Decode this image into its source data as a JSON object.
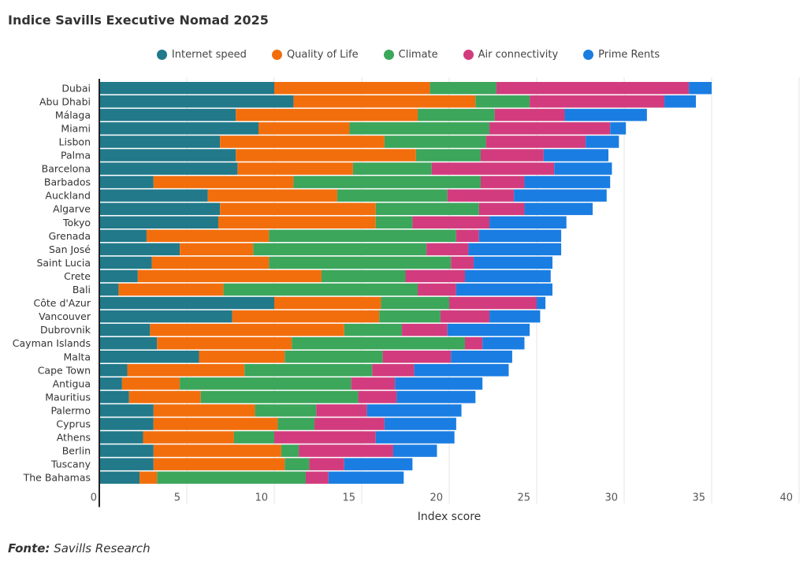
{
  "chart_data": {
    "type": "bar",
    "orientation": "horizontal",
    "stacked": true,
    "title": "Indice Savills Executive Nomad 2025",
    "xlabel": "Index score",
    "ylabel": "",
    "xlim": [
      0,
      40
    ],
    "xticks": [
      0,
      5,
      10,
      15,
      20,
      25,
      30,
      35,
      40
    ],
    "grid": true,
    "legend_position": "top",
    "categories": [
      "Dubai",
      "Abu Dhabi",
      "Málaga",
      "Miami",
      "Lisbon",
      "Palma",
      "Barcelona",
      "Barbados",
      "Auckland",
      "Algarve",
      "Tokyo",
      "Grenada",
      "San José",
      "Saint Lucia",
      "Crete",
      "Bali",
      "Côte d'Azur",
      "Vancouver",
      "Dubrovnik",
      "Cayman Islands",
      "Malta",
      "Cape Town",
      "Antigua",
      "Mauritius",
      "Palermo",
      "Cyprus",
      "Athens",
      "Berlin",
      "Tuscany",
      "The Bahamas"
    ],
    "series": [
      {
        "name": "Internet speed",
        "color": "#21798a",
        "values": [
          10.0,
          11.1,
          7.8,
          9.1,
          6.9,
          7.8,
          7.9,
          3.1,
          6.2,
          6.9,
          6.8,
          2.7,
          4.6,
          3.0,
          2.2,
          1.1,
          10.0,
          7.6,
          2.9,
          3.3,
          5.7,
          1.6,
          1.3,
          1.7,
          3.1,
          3.1,
          2.5,
          3.1,
          3.1,
          2.3
        ]
      },
      {
        "name": "Quality of Life",
        "color": "#f26e0c",
        "values": [
          8.9,
          10.4,
          10.4,
          5.2,
          9.4,
          10.3,
          6.6,
          8.0,
          7.4,
          8.9,
          9.0,
          7.0,
          4.2,
          6.7,
          10.5,
          6.0,
          6.1,
          8.4,
          11.1,
          7.7,
          4.9,
          6.7,
          3.3,
          4.1,
          5.8,
          7.1,
          5.2,
          7.3,
          7.5,
          1.0
        ]
      },
      {
        "name": "Climate",
        "color": "#3ca65b",
        "values": [
          3.8,
          3.1,
          4.4,
          8.0,
          5.8,
          3.7,
          4.5,
          10.7,
          6.3,
          5.9,
          2.1,
          10.7,
          9.9,
          10.4,
          4.8,
          11.1,
          3.9,
          3.5,
          3.3,
          9.9,
          5.6,
          7.3,
          9.8,
          9.0,
          3.5,
          2.1,
          2.3,
          1.0,
          1.4,
          8.5
        ]
      },
      {
        "name": "Air connectivity",
        "color": "#d23c7e",
        "values": [
          11.0,
          7.7,
          4.0,
          6.9,
          5.7,
          3.6,
          7.0,
          2.5,
          3.8,
          2.6,
          4.4,
          1.3,
          2.4,
          1.3,
          3.4,
          2.2,
          5.0,
          2.8,
          2.6,
          1.0,
          3.9,
          2.4,
          2.5,
          2.2,
          2.9,
          4.0,
          5.8,
          5.4,
          2.0,
          1.3
        ]
      },
      {
        "name": "Prime Rents",
        "color": "#1a7de2",
        "values": [
          1.3,
          1.8,
          4.7,
          0.9,
          1.9,
          3.7,
          3.3,
          4.9,
          5.3,
          3.9,
          4.4,
          4.7,
          5.3,
          4.5,
          4.9,
          5.5,
          0.5,
          2.9,
          4.7,
          2.4,
          3.5,
          5.4,
          5.0,
          4.5,
          5.4,
          4.1,
          4.5,
          2.5,
          3.9,
          4.3
        ]
      }
    ]
  },
  "footer": {
    "label": "Fonte:",
    "source": "Savills Research"
  }
}
